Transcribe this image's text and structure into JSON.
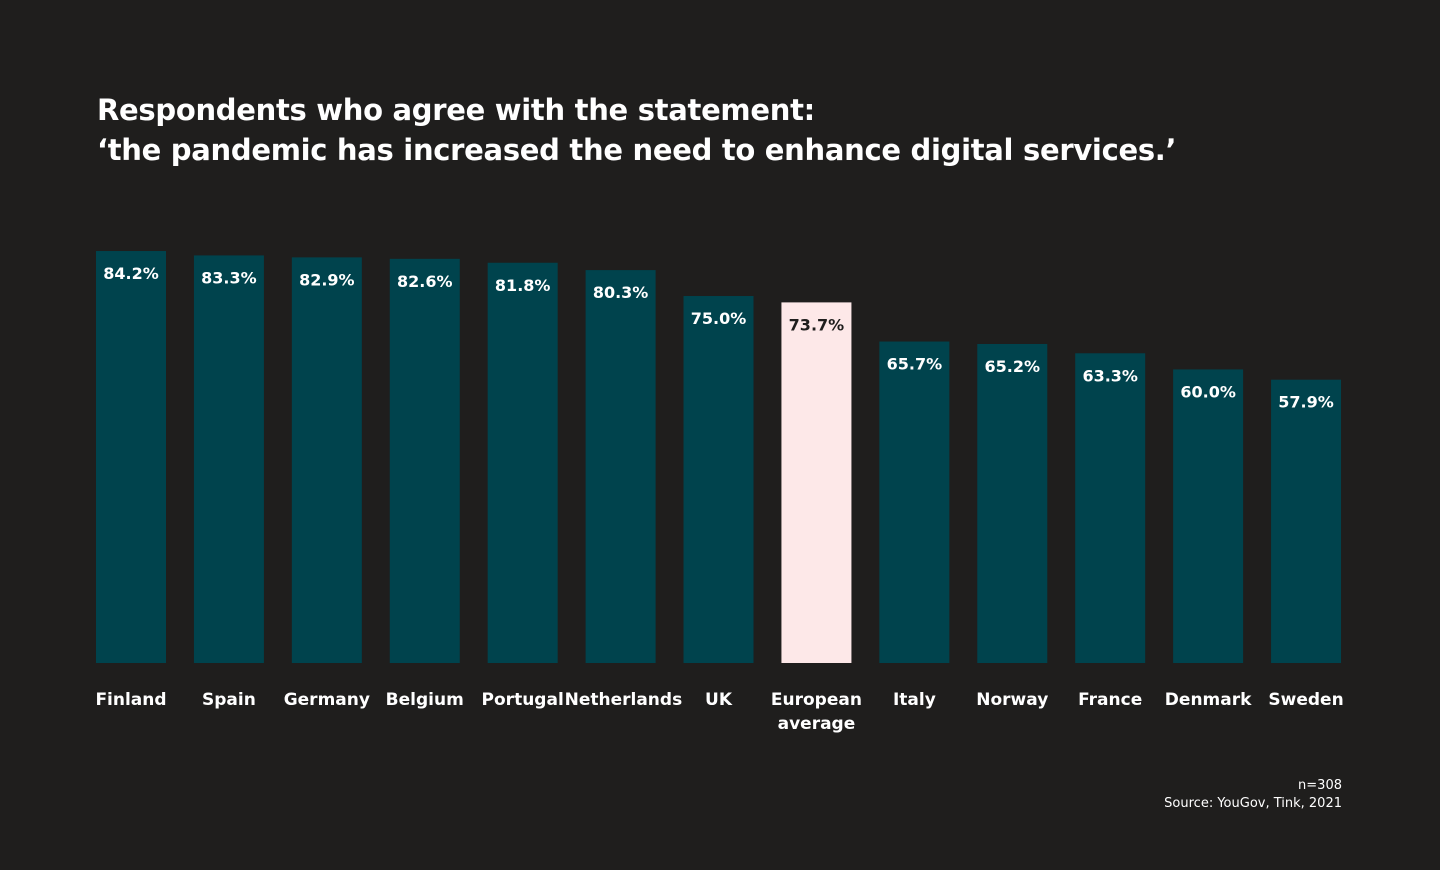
{
  "chart_data": {
    "type": "bar",
    "title_lines": [
      "Respondents who agree with the statement:",
      "‘the pandemic has increased the need to enhance digital services.’"
    ],
    "categories": [
      "Finland",
      "Spain",
      "Germany",
      "Belgium",
      "Portugal",
      "Netherlands",
      "UK",
      "European average",
      "Italy",
      "Norway",
      "France",
      "Denmark",
      "Sweden"
    ],
    "values": [
      84.2,
      83.3,
      82.9,
      82.6,
      81.8,
      80.3,
      75.0,
      73.7,
      65.7,
      65.2,
      63.3,
      60.0,
      57.9
    ],
    "value_labels": [
      "84.2%",
      "83.3%",
      "82.9%",
      "82.6%",
      "81.8%",
      "80.3%",
      "75.0%",
      "73.7%",
      "65.7%",
      "65.2%",
      "63.3%",
      "60.0%",
      "57.9%"
    ],
    "colors": [
      "#00434d",
      "#00434d",
      "#00434d",
      "#00434d",
      "#00434d",
      "#00434d",
      "#00434d",
      "#fde8e8",
      "#00434d",
      "#00434d",
      "#00434d",
      "#00434d",
      "#00434d"
    ],
    "notes": [
      "n=308",
      "Source: YouGov, Tink, 2021"
    ]
  }
}
